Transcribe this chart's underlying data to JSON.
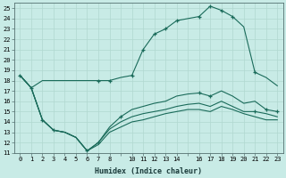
{
  "xlabel": "Humidex (Indice chaleur)",
  "bg_color": "#c8ebe6",
  "grid_color": "#b0d8d0",
  "line_color": "#1a6b5a",
  "xlim": [
    -0.5,
    23.5
  ],
  "ylim": [
    11,
    25.5
  ],
  "xtick_positions": [
    0,
    1,
    2,
    3,
    4,
    5,
    6,
    7,
    8,
    9,
    10,
    11,
    12,
    13,
    14,
    15,
    16,
    17,
    18,
    19,
    20,
    21,
    22,
    23
  ],
  "xtick_labels": [
    "0",
    "1",
    "2",
    "3",
    "4",
    "5",
    "6",
    "7",
    "8",
    "",
    "10",
    "11",
    "12",
    "13",
    "14",
    "",
    "16",
    "17",
    "18",
    "19",
    "20",
    "21",
    "22",
    "23"
  ],
  "ytick_positions": [
    11,
    12,
    13,
    14,
    15,
    16,
    17,
    18,
    19,
    20,
    21,
    22,
    23,
    24,
    25
  ],
  "ytick_labels": [
    "11",
    "12",
    "13",
    "14",
    "15",
    "16",
    "17",
    "18",
    "19",
    "20",
    "21",
    "22",
    "23",
    "24",
    "25"
  ],
  "line1_x": [
    0,
    1,
    2,
    3,
    4,
    5,
    6,
    7,
    8,
    9,
    10,
    11,
    12,
    13,
    14,
    15,
    16,
    17,
    18,
    19,
    20,
    21,
    22,
    23
  ],
  "line1_y": [
    18.5,
    17.3,
    18.0,
    18.0,
    18.0,
    18.0,
    18.0,
    18.0,
    18.0,
    18.3,
    18.5,
    21.0,
    22.5,
    23.0,
    23.8,
    24.0,
    24.2,
    25.2,
    24.8,
    24.2,
    23.2,
    18.8,
    18.3,
    17.5
  ],
  "line2_x": [
    0,
    1,
    2,
    3,
    4,
    5,
    6,
    7,
    8,
    9,
    10,
    11,
    12,
    13,
    14,
    15,
    16,
    17,
    18,
    19,
    20,
    21,
    22,
    23
  ],
  "line2_y": [
    18.5,
    17.3,
    14.2,
    13.2,
    13.0,
    12.5,
    11.2,
    12.0,
    13.5,
    14.5,
    15.2,
    15.5,
    15.8,
    16.0,
    16.5,
    16.7,
    16.8,
    16.5,
    17.0,
    16.5,
    15.8,
    16.0,
    15.2,
    15.0
  ],
  "line3_x": [
    0,
    1,
    2,
    3,
    4,
    5,
    6,
    7,
    8,
    9,
    10,
    11,
    12,
    13,
    14,
    15,
    16,
    17,
    18,
    19,
    20,
    21,
    22,
    23
  ],
  "line3_y": [
    18.5,
    17.3,
    14.2,
    13.2,
    13.0,
    12.5,
    11.2,
    12.0,
    13.3,
    14.0,
    14.5,
    14.8,
    15.0,
    15.2,
    15.5,
    15.7,
    15.8,
    15.5,
    16.0,
    15.5,
    15.0,
    15.0,
    14.8,
    14.5
  ],
  "line4_x": [
    0,
    1,
    2,
    3,
    4,
    5,
    6,
    7,
    8,
    9,
    10,
    11,
    12,
    13,
    14,
    15,
    16,
    17,
    18,
    19,
    20,
    21,
    22,
    23
  ],
  "line4_y": [
    18.5,
    17.3,
    14.2,
    13.2,
    13.0,
    12.5,
    11.2,
    11.8,
    13.0,
    13.5,
    14.0,
    14.2,
    14.5,
    14.8,
    15.0,
    15.2,
    15.2,
    15.0,
    15.5,
    15.2,
    14.8,
    14.5,
    14.2,
    14.2
  ],
  "markers1_x": [
    0,
    1,
    7,
    8,
    10,
    11,
    12,
    13,
    14,
    16,
    17,
    18,
    19,
    21
  ],
  "markers1_y": [
    18.5,
    17.3,
    18.0,
    18.0,
    18.5,
    21.0,
    22.5,
    23.0,
    23.8,
    24.2,
    25.2,
    24.8,
    24.2,
    18.8
  ],
  "markers2_x": [
    2,
    3,
    6,
    7,
    9,
    16,
    17,
    21,
    22,
    23
  ],
  "markers2_y": [
    14.2,
    13.2,
    11.2,
    12.0,
    14.5,
    16.8,
    16.5,
    15.0,
    15.2,
    15.0
  ]
}
